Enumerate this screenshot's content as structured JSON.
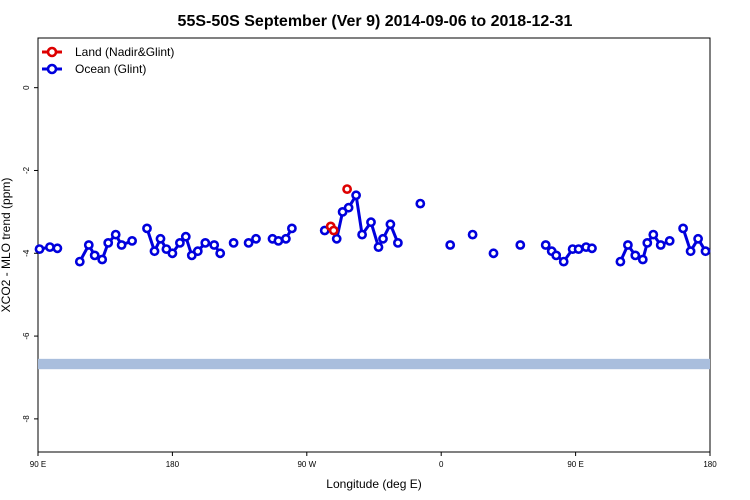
{
  "chart_data": {
    "type": "line",
    "title": "55S-50S September (Ver 9)   2014-09-06 to 2018-12-31",
    "xlabel": "Longitude (deg E)",
    "ylabel": "XCO2 - MLO trend (ppm)",
    "xlim": [
      90,
      540
    ],
    "ylim": [
      -8.8,
      1.2
    ],
    "x_ticks": [
      {
        "value": 90,
        "label": "90 E"
      },
      {
        "value": 180,
        "label": "180"
      },
      {
        "value": 270,
        "label": "90 W"
      },
      {
        "value": 360,
        "label": "0"
      },
      {
        "value": 450,
        "label": "90 E"
      },
      {
        "value": 540,
        "label": "180"
      }
    ],
    "y_ticks": [
      {
        "value": 0,
        "label": "0"
      },
      {
        "value": -2,
        "label": "-2"
      },
      {
        "value": -4,
        "label": "-4"
      },
      {
        "value": -6,
        "label": "-6"
      },
      {
        "value": -8,
        "label": "-8"
      }
    ],
    "grid": false,
    "legend_position": "top-left",
    "series": [
      {
        "name": "Land (Nadir&Glint)",
        "color": "#dd0000",
        "segments": [
          [
            [
              286,
              -3.35
            ],
            [
              288,
              -3.45
            ]
          ],
          [
            [
              297,
              -2.45
            ]
          ]
        ]
      },
      {
        "name": "Ocean (Glint)",
        "color": "#0000dd",
        "segments": [
          [
            [
              91,
              -3.9
            ],
            [
              98,
              -3.85
            ],
            [
              103,
              -3.88
            ]
          ],
          [
            [
              118,
              -4.2
            ],
            [
              124,
              -3.8
            ],
            [
              128,
              -4.05
            ],
            [
              133,
              -4.15
            ],
            [
              137,
              -3.75
            ],
            [
              142,
              -3.55
            ],
            [
              146,
              -3.8
            ],
            [
              153,
              -3.7
            ]
          ],
          [
            [
              163,
              -3.4
            ],
            [
              168,
              -3.95
            ],
            [
              172,
              -3.65
            ],
            [
              176,
              -3.9
            ],
            [
              180,
              -4.0
            ],
            [
              185,
              -3.75
            ],
            [
              189,
              -3.6
            ],
            [
              193,
              -4.05
            ],
            [
              197,
              -3.95
            ],
            [
              202,
              -3.75
            ],
            [
              208,
              -3.8
            ],
            [
              212,
              -4.0
            ]
          ],
          [
            [
              221,
              -3.75
            ]
          ],
          [
            [
              231,
              -3.75
            ],
            [
              236,
              -3.65
            ]
          ],
          [
            [
              247,
              -3.65
            ],
            [
              251,
              -3.7
            ],
            [
              256,
              -3.65
            ],
            [
              260,
              -3.4
            ]
          ],
          [
            [
              282,
              -3.45
            ]
          ],
          [
            [
              290,
              -3.65
            ],
            [
              294,
              -3.0
            ],
            [
              298,
              -2.9
            ],
            [
              303,
              -2.6
            ],
            [
              307,
              -3.55
            ],
            [
              313,
              -3.25
            ],
            [
              318,
              -3.85
            ],
            [
              321,
              -3.65
            ],
            [
              326,
              -3.3
            ],
            [
              331,
              -3.75
            ]
          ],
          [
            [
              346,
              -2.8
            ]
          ],
          [
            [
              366,
              -3.8
            ]
          ],
          [
            [
              381,
              -3.55
            ]
          ],
          [
            [
              395,
              -4.0
            ]
          ],
          [
            [
              413,
              -3.8
            ]
          ],
          [
            [
              430,
              -3.8
            ],
            [
              434,
              -3.95
            ],
            [
              437,
              -4.05
            ],
            [
              442,
              -4.2
            ],
            [
              448,
              -3.9
            ],
            [
              452,
              -3.9
            ],
            [
              457,
              -3.85
            ],
            [
              461,
              -3.88
            ]
          ],
          [
            [
              480,
              -4.2
            ],
            [
              485,
              -3.8
            ],
            [
              490,
              -4.05
            ],
            [
              495,
              -4.15
            ],
            [
              498,
              -3.75
            ],
            [
              502,
              -3.55
            ],
            [
              507,
              -3.8
            ],
            [
              513,
              -3.7
            ]
          ],
          [
            [
              522,
              -3.4
            ],
            [
              527,
              -3.95
            ],
            [
              532,
              -3.65
            ],
            [
              537,
              -3.95
            ]
          ]
        ]
      }
    ],
    "band": {
      "y_from": -6.55,
      "y_to": -6.8,
      "color": "#a9bedd"
    }
  }
}
